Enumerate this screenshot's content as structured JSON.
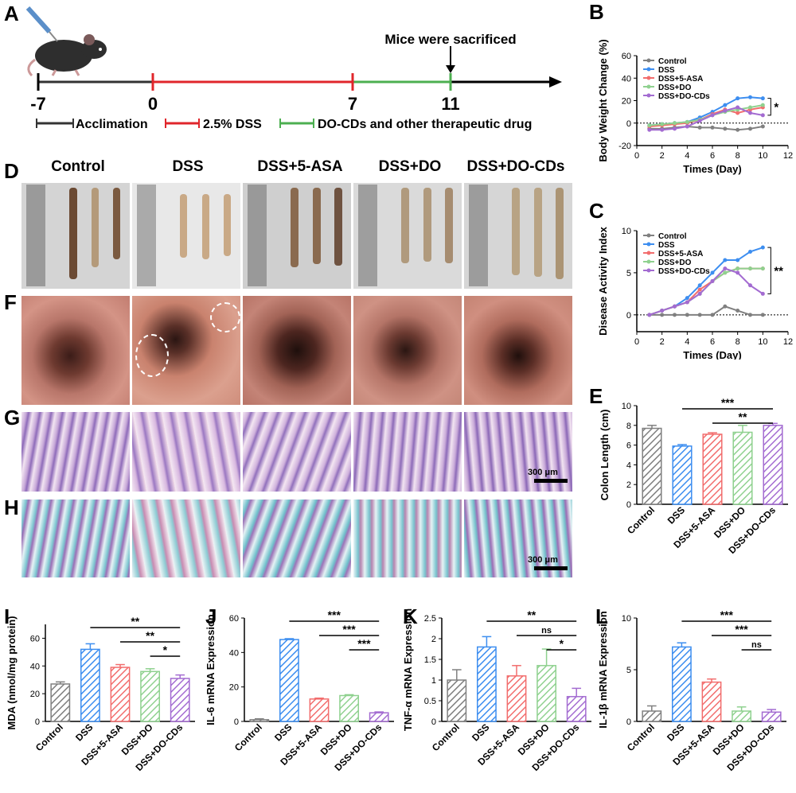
{
  "panel_labels": {
    "A": "A",
    "B": "B",
    "C": "C",
    "D": "D",
    "E": "E",
    "F": "F",
    "G": "G",
    "H": "H",
    "I": "I",
    "J": "J",
    "K": "K",
    "L": "L"
  },
  "timeline": {
    "sacrifice_label": "Mice were sacrificed",
    "ticks": [
      "-7",
      "0",
      "7",
      "11"
    ],
    "legend": [
      "Acclimation",
      "2.5% DSS",
      "DO-CDs and other therapeutic drug"
    ],
    "colors": {
      "acclimation": "#333333",
      "dss": "#e0262b",
      "treatment": "#4caf50"
    }
  },
  "group_headers": [
    "Control",
    "DSS",
    "DSS+5-ASA",
    "DSS+DO",
    "DSS+DO-CDs"
  ],
  "scale_bar": "300 μm",
  "colors": {
    "Control": "#808080",
    "DSS": "#3d8ef0",
    "DSS+5-ASA": "#f26d6d",
    "DSS+DO": "#8fd18f",
    "DSS+DO-CDs": "#a36bd1"
  },
  "chart_data": [
    {
      "id": "B",
      "type": "line",
      "xlabel": "Times (Day)",
      "ylabel": "Body Weight Change (%)",
      "xlim": [
        0,
        12
      ],
      "ylim": [
        -20,
        60
      ],
      "xticks": [
        0,
        2,
        4,
        6,
        8,
        10,
        12
      ],
      "yticks": [
        -20,
        0,
        20,
        40,
        60
      ],
      "x": [
        1,
        2,
        3,
        4,
        5,
        6,
        7,
        8,
        9,
        10
      ],
      "series": [
        {
          "name": "Control",
          "values": [
            -5,
            -5,
            -4,
            -3,
            -4,
            -4,
            -5,
            -6,
            -5,
            -3
          ]
        },
        {
          "name": "DSS",
          "values": [
            -2,
            -1,
            0,
            1,
            5,
            10,
            16,
            22,
            23,
            22
          ]
        },
        {
          "name": "DSS+5-ASA",
          "values": [
            -3,
            -2,
            -1,
            0,
            3,
            8,
            12,
            9,
            12,
            14
          ]
        },
        {
          "name": "DSS+DO",
          "values": [
            -2,
            -1,
            0,
            1,
            3,
            7,
            10,
            12,
            14,
            16
          ]
        },
        {
          "name": "DSS+DO-CDs",
          "values": [
            -6,
            -6,
            -5,
            -3,
            2,
            7,
            11,
            14,
            9,
            7
          ]
        }
      ],
      "significance": "*"
    },
    {
      "id": "C",
      "type": "line",
      "xlabel": "Times (Day)",
      "ylabel": "Disease Activity Index",
      "xlim": [
        0,
        12
      ],
      "ylim": [
        -2,
        10
      ],
      "xticks": [
        0,
        2,
        4,
        6,
        8,
        10,
        12
      ],
      "yticks": [
        0,
        5,
        10
      ],
      "x": [
        1,
        2,
        3,
        4,
        5,
        6,
        7,
        8,
        9,
        10
      ],
      "series": [
        {
          "name": "Control",
          "values": [
            0,
            0,
            0,
            0,
            0,
            0,
            1,
            0.5,
            0,
            0
          ]
        },
        {
          "name": "DSS",
          "values": [
            0,
            0.5,
            1,
            2,
            3.5,
            5,
            6.5,
            6.5,
            7.5,
            8
          ]
        },
        {
          "name": "DSS+5-ASA",
          "values": [
            0,
            0.5,
            1,
            1.5,
            3,
            4,
            5,
            5.5,
            5.5,
            5.5
          ]
        },
        {
          "name": "DSS+DO",
          "values": [
            0,
            0.5,
            1,
            1.5,
            2.5,
            4,
            5,
            5.5,
            5.5,
            5.5
          ]
        },
        {
          "name": "DSS+DO-CDs",
          "values": [
            0,
            0.5,
            1,
            1.5,
            2.5,
            4,
            5.5,
            5,
            3.5,
            2.5
          ]
        }
      ],
      "significance": "**"
    },
    {
      "id": "E",
      "type": "bar",
      "ylabel": "Colon Length (cm)",
      "ylim": [
        0,
        10
      ],
      "yticks": [
        0,
        2,
        4,
        6,
        8,
        10
      ],
      "categories": [
        "Control",
        "DSS",
        "DSS+5-ASA",
        "DSS+DO",
        "DSS+DO-CDs"
      ],
      "values": [
        7.7,
        5.9,
        7.1,
        7.3,
        8.0
      ],
      "errors": [
        0.3,
        0.15,
        0.15,
        0.7,
        0.2
      ],
      "significance": [
        {
          "from": 1,
          "to": 4,
          "label": "***"
        },
        {
          "from": 2,
          "to": 4,
          "label": "**"
        }
      ]
    },
    {
      "id": "I",
      "type": "bar",
      "ylabel": "MDA (nmol/mg protein)",
      "ylim": [
        0,
        70
      ],
      "yticks": [
        0,
        20,
        40,
        60
      ],
      "categories": [
        "Control",
        "DSS",
        "DSS+5-ASA",
        "DSS+DO",
        "DSS+DO-CDs"
      ],
      "values": [
        27,
        52,
        39,
        36,
        31
      ],
      "errors": [
        1.5,
        4,
        2,
        2,
        2.5
      ],
      "significance": [
        {
          "from": 1,
          "to": 4,
          "label": "**"
        },
        {
          "from": 2,
          "to": 4,
          "label": "**"
        },
        {
          "from": 3,
          "to": 4,
          "label": "*"
        }
      ]
    },
    {
      "id": "J",
      "type": "bar",
      "ylabel": "IL-6 mRNA Expression",
      "ylim": [
        0,
        60
      ],
      "yticks": [
        0,
        20,
        40,
        60
      ],
      "categories": [
        "Control",
        "DSS",
        "DSS+5-ASA",
        "DSS+DO",
        "DSS+DO-CDs"
      ],
      "values": [
        1,
        47.5,
        13,
        15,
        5
      ],
      "errors": [
        0.5,
        0.5,
        0.5,
        0.5,
        0.5
      ],
      "significance": [
        {
          "from": 1,
          "to": 4,
          "label": "***"
        },
        {
          "from": 2,
          "to": 4,
          "label": "***"
        },
        {
          "from": 3,
          "to": 4,
          "label": "***"
        }
      ]
    },
    {
      "id": "K",
      "type": "bar",
      "ylabel": "TNF-α mRNA Expression",
      "ylim": [
        0,
        2.5
      ],
      "yticks": [
        0,
        0.5,
        1.0,
        1.5,
        2.0,
        2.5
      ],
      "categories": [
        "Control",
        "DSS",
        "DSS+5-ASA",
        "DSS+DO",
        "DSS+DO-CDs"
      ],
      "values": [
        1.0,
        1.8,
        1.1,
        1.35,
        0.6
      ],
      "errors": [
        0.25,
        0.25,
        0.25,
        0.4,
        0.2
      ],
      "significance": [
        {
          "from": 1,
          "to": 4,
          "label": "**"
        },
        {
          "from": 2,
          "to": 4,
          "label": "ns"
        },
        {
          "from": 3,
          "to": 4,
          "label": "*"
        }
      ]
    },
    {
      "id": "L",
      "type": "bar",
      "ylabel": "IL-1β mRNA Expression",
      "ylim": [
        0,
        10
      ],
      "yticks": [
        0,
        5,
        10
      ],
      "categories": [
        "Control",
        "DSS",
        "DSS+5-ASA",
        "DSS+DO",
        "DSS+DO-CDs"
      ],
      "values": [
        1.0,
        7.2,
        3.8,
        1.0,
        0.9
      ],
      "errors": [
        0.5,
        0.4,
        0.3,
        0.4,
        0.25
      ],
      "significance": [
        {
          "from": 1,
          "to": 4,
          "label": "***"
        },
        {
          "from": 2,
          "to": 4,
          "label": "***"
        },
        {
          "from": 3,
          "to": 4,
          "label": "ns"
        }
      ]
    }
  ]
}
